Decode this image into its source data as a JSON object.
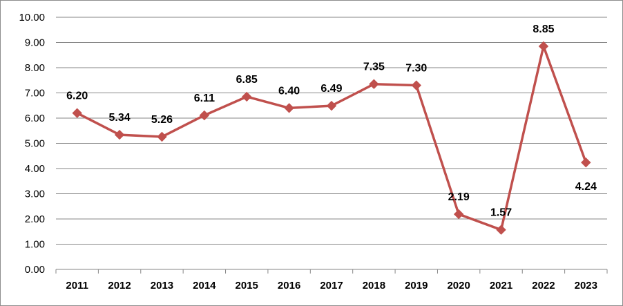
{
  "chart_data": {
    "type": "line",
    "title": "",
    "xlabel": "",
    "ylabel": "",
    "categories": [
      "2011",
      "2012",
      "2013",
      "2014",
      "2015",
      "2016",
      "2017",
      "2018",
      "2019",
      "2020",
      "2021",
      "2022",
      "2023"
    ],
    "series": [
      {
        "values": [
          6.2,
          5.34,
          5.26,
          6.11,
          6.85,
          6.4,
          6.49,
          7.35,
          7.3,
          2.19,
          1.57,
          8.85,
          4.24
        ],
        "labels": [
          "6.20",
          "5.34",
          "5.26",
          "6.11",
          "6.85",
          "6.40",
          "6.49",
          "7.35",
          "7.30",
          "2.19",
          "1.57",
          "8.85",
          "4.24"
        ],
        "color": "#c0504d",
        "marker": "diamond"
      }
    ],
    "ylim": [
      0,
      10
    ],
    "yticks": [
      "0.00",
      "1.00",
      "2.00",
      "3.00",
      "4.00",
      "5.00",
      "6.00",
      "7.00",
      "8.00",
      "9.00",
      "10.00"
    ],
    "grid": true,
    "legend": "none"
  }
}
